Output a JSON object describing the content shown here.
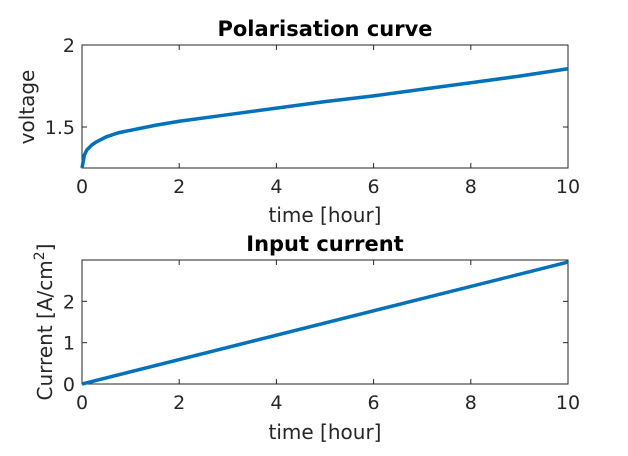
{
  "chart_data": [
    {
      "type": "line",
      "title": "Polarisation curve",
      "xlabel": "time [hour]",
      "ylabel": "voltage",
      "xlim": [
        0,
        10
      ],
      "ylim": [
        1.25,
        2.0
      ],
      "xticks": [
        0,
        2,
        4,
        6,
        8,
        10
      ],
      "xtick_labels": [
        "0",
        "2",
        "4",
        "6",
        "8",
        "10"
      ],
      "yticks": [
        1.5,
        2.0
      ],
      "ytick_labels": [
        "1.5",
        "2"
      ],
      "grid": false,
      "series": [
        {
          "color": "#0072BD",
          "x": [
            0,
            0.05,
            0.1,
            0.2,
            0.3,
            0.5,
            0.75,
            1,
            1.5,
            2,
            3,
            4,
            5,
            6,
            7,
            8,
            9,
            10
          ],
          "y": [
            1.25,
            1.33,
            1.36,
            1.39,
            1.41,
            1.44,
            1.465,
            1.48,
            1.51,
            1.535,
            1.575,
            1.615,
            1.655,
            1.69,
            1.73,
            1.77,
            1.81,
            1.855
          ]
        }
      ]
    },
    {
      "type": "line",
      "title": "Input current",
      "xlabel": "time [hour]",
      "ylabel": "Current [A/cm",
      "ylabel_sup": "2",
      "ylabel_end": "]",
      "xlim": [
        0,
        10
      ],
      "ylim": [
        0,
        3
      ],
      "xticks": [
        0,
        2,
        4,
        6,
        8,
        10
      ],
      "xtick_labels": [
        "0",
        "2",
        "4",
        "6",
        "8",
        "10"
      ],
      "yticks": [
        0,
        1,
        2
      ],
      "ytick_labels": [
        "0",
        "1",
        "2"
      ],
      "grid": false,
      "series": [
        {
          "color": "#0072BD",
          "x": [
            0,
            10
          ],
          "y": [
            0,
            2.95
          ]
        }
      ]
    }
  ]
}
